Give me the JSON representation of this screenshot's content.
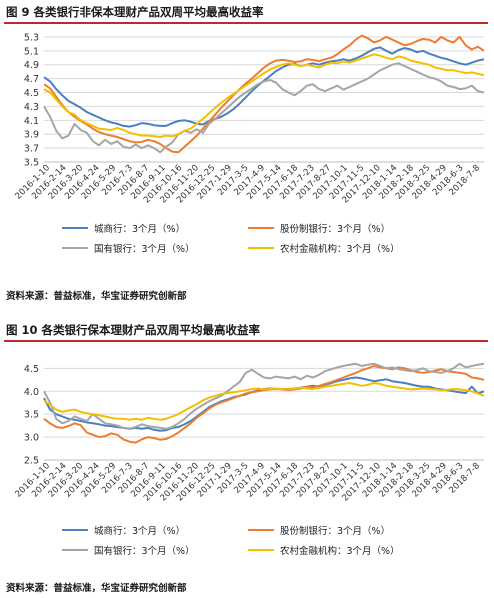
{
  "figures": [
    {
      "title": "图 9 各类银行非保本理财产品双周平均最高收益率",
      "source": "资料来源：普益标准，华宝证券研究创新部"
    },
    {
      "title": "图 10 各类银行保本理财产品双周平均最高收益率",
      "source": "资料来源：普益标准，华宝证券研究创新部"
    }
  ],
  "colors": {
    "城商行": "#4a7fc1",
    "股份制银行": "#ed7d31",
    "国有银行": "#a5a5a5",
    "农村金融机构": "#f2c000",
    "rule": "#c0282d"
  },
  "chart_data": [
    {
      "type": "line",
      "title": "图 9 各类银行非保本理财产品双周平均最高收益率",
      "x_ticks": [
        "2016-1-10",
        "2016-2-14",
        "2016-3-20",
        "2016-4-24",
        "2016-5-29",
        "2016-7-3",
        "2016-8-7",
        "2016-9-11",
        "2016-10-16",
        "2016-11-20",
        "2016-12-25",
        "2017-1-29",
        "2017-3-5",
        "2017-4-9",
        "2017-5-14",
        "2017-6-18",
        "2017-7-23",
        "2017-8-27",
        "2017-10-1",
        "2017-11-5",
        "2017-12-10",
        "2018-1-14",
        "2018-2-18",
        "2018-3-25",
        "2018-4-29",
        "2018-6-3",
        "2018-7-8"
      ],
      "y_ticks": [
        3.5,
        3.7,
        3.9,
        4.1,
        4.3,
        4.5,
        4.7,
        4.9,
        5.1,
        5.3
      ],
      "ylim": [
        3.5,
        5.4
      ],
      "grid": true,
      "legend_position": "bottom",
      "series": [
        {
          "name": "城商行：3个月（%）",
          "color_key": "城商行",
          "values": [
            4.72,
            4.66,
            4.55,
            4.46,
            4.38,
            4.33,
            4.28,
            4.22,
            4.18,
            4.14,
            4.1,
            4.07,
            4.05,
            4.02,
            4.01,
            4.03,
            4.06,
            4.05,
            4.03,
            4.02,
            4.02,
            4.06,
            4.09,
            4.1,
            4.08,
            4.05,
            4.04,
            4.09,
            4.12,
            4.15,
            4.2,
            4.26,
            4.34,
            4.43,
            4.52,
            4.6,
            4.67,
            4.74,
            4.81,
            4.86,
            4.9,
            4.91,
            4.88,
            4.9,
            4.92,
            4.9,
            4.93,
            4.95,
            4.96,
            4.98,
            4.96,
            4.99,
            5.03,
            5.08,
            5.13,
            5.15,
            5.1,
            5.06,
            5.11,
            5.14,
            5.12,
            5.08,
            5.1,
            5.06,
            5.03,
            5.0,
            4.98,
            4.95,
            4.92,
            4.9,
            4.93,
            4.96,
            4.98
          ]
        },
        {
          "name": "股份制银行：3个月（%）",
          "color_key": "股份制银行",
          "values": [
            4.62,
            4.56,
            4.44,
            4.32,
            4.22,
            4.15,
            4.09,
            4.04,
            3.98,
            3.93,
            3.9,
            3.88,
            3.86,
            3.83,
            3.8,
            3.78,
            3.79,
            3.82,
            3.8,
            3.76,
            3.7,
            3.65,
            3.64,
            3.72,
            3.8,
            3.88,
            3.98,
            4.08,
            4.18,
            4.28,
            4.37,
            4.46,
            4.55,
            4.63,
            4.7,
            4.78,
            4.86,
            4.92,
            4.96,
            4.97,
            4.96,
            4.94,
            4.95,
            4.98,
            4.97,
            4.95,
            4.98,
            5.0,
            5.05,
            5.12,
            5.18,
            5.26,
            5.32,
            5.28,
            5.22,
            5.25,
            5.3,
            5.26,
            5.22,
            5.18,
            5.2,
            5.24,
            5.27,
            5.26,
            5.22,
            5.3,
            5.25,
            5.22,
            5.3,
            5.18,
            5.12,
            5.16,
            5.1
          ]
        },
        {
          "name": "国有银行：3个月（%）",
          "color_key": "国有银行",
          "values": [
            4.3,
            4.15,
            3.95,
            3.84,
            3.88,
            4.05,
            3.96,
            3.92,
            3.8,
            3.74,
            3.82,
            3.76,
            3.8,
            3.72,
            3.7,
            3.75,
            3.7,
            3.74,
            3.7,
            3.64,
            3.72,
            3.78,
            3.9,
            3.95,
            3.92,
            3.97,
            3.92,
            4.05,
            4.12,
            4.2,
            4.28,
            4.36,
            4.44,
            4.5,
            4.56,
            4.62,
            4.66,
            4.68,
            4.64,
            4.55,
            4.5,
            4.46,
            4.52,
            4.6,
            4.62,
            4.55,
            4.52,
            4.56,
            4.6,
            4.54,
            4.58,
            4.62,
            4.66,
            4.7,
            4.76,
            4.82,
            4.86,
            4.9,
            4.92,
            4.88,
            4.84,
            4.8,
            4.76,
            4.72,
            4.7,
            4.66,
            4.6,
            4.58,
            4.55,
            4.56,
            4.6,
            4.52,
            4.5
          ]
        },
        {
          "name": "农村金融机构：3个月（%）",
          "color_key": "农村金融机构",
          "values": [
            4.55,
            4.5,
            4.4,
            4.3,
            4.22,
            4.18,
            4.1,
            4.06,
            4.02,
            3.98,
            3.97,
            3.96,
            3.99,
            3.96,
            3.92,
            3.9,
            3.88,
            3.88,
            3.87,
            3.86,
            3.88,
            3.87,
            3.9,
            3.95,
            3.98,
            4.05,
            4.12,
            4.2,
            4.28,
            4.35,
            4.42,
            4.48,
            4.54,
            4.6,
            4.66,
            4.72,
            4.78,
            4.83,
            4.87,
            4.9,
            4.92,
            4.9,
            4.88,
            4.9,
            4.88,
            4.86,
            4.9,
            4.93,
            4.92,
            4.95,
            4.93,
            4.96,
            4.99,
            5.02,
            5.05,
            5.03,
            5.0,
            4.98,
            5.02,
            5.0,
            4.96,
            4.94,
            4.92,
            4.9,
            4.86,
            4.84,
            4.82,
            4.82,
            4.8,
            4.78,
            4.79,
            4.77,
            4.75
          ]
        }
      ]
    },
    {
      "type": "line",
      "title": "图 10 各类银行保本理财产品双周平均最高收益率",
      "x_ticks": [
        "2016-1-10",
        "2016-2-14",
        "2016-3-20",
        "2016-4-24",
        "2016-5-29",
        "2016-7-3",
        "2016-8-7",
        "2016-9-11",
        "2016-10-16",
        "2016-11-20",
        "2016-12-25",
        "2017-1-29",
        "2017-3-5",
        "2017-4-9",
        "2017-5-14",
        "2017-6-18",
        "2017-7-23",
        "2017-8-27",
        "2017-10-1",
        "2017-11-5",
        "2017-12-10",
        "2018-1-14",
        "2018-2-18",
        "2018-3-25",
        "2018-4-29",
        "2018-6-3",
        "2018-7-8"
      ],
      "y_ticks": [
        2.5,
        3.0,
        3.5,
        4.0,
        4.5
      ],
      "ylim": [
        2.5,
        4.9
      ],
      "grid": true,
      "legend_position": "bottom",
      "series": [
        {
          "name": "城商行：3个月（%）",
          "color_key": "城商行",
          "values": [
            3.85,
            3.6,
            3.5,
            3.45,
            3.4,
            3.38,
            3.35,
            3.32,
            3.3,
            3.28,
            3.25,
            3.24,
            3.22,
            3.2,
            3.18,
            3.2,
            3.18,
            3.2,
            3.16,
            3.14,
            3.15,
            3.2,
            3.22,
            3.28,
            3.35,
            3.45,
            3.55,
            3.65,
            3.72,
            3.78,
            3.82,
            3.87,
            3.9,
            3.93,
            3.98,
            4.02,
            4.05,
            4.06,
            4.05,
            4.05,
            4.05,
            4.06,
            4.08,
            4.1,
            4.12,
            4.1,
            4.14,
            4.18,
            4.22,
            4.25,
            4.28,
            4.3,
            4.28,
            4.25,
            4.22,
            4.24,
            4.26,
            4.22,
            4.2,
            4.18,
            4.15,
            4.12,
            4.1,
            4.1,
            4.06,
            4.04,
            4.02,
            4.0,
            3.98,
            3.96,
            4.1,
            3.95,
            4.0
          ]
        },
        {
          "name": "股份制银行：3个月（%）",
          "color_key": "股份制银行",
          "values": [
            3.4,
            3.3,
            3.22,
            3.2,
            3.24,
            3.3,
            3.26,
            3.1,
            3.05,
            3.0,
            3.02,
            3.08,
            3.05,
            2.95,
            2.9,
            2.88,
            2.95,
            3.0,
            2.98,
            2.94,
            2.96,
            3.02,
            3.1,
            3.2,
            3.3,
            3.42,
            3.52,
            3.62,
            3.7,
            3.76,
            3.8,
            3.85,
            3.9,
            3.95,
            3.98,
            4.0,
            4.02,
            4.04,
            4.05,
            4.04,
            4.02,
            4.04,
            4.06,
            4.1,
            4.08,
            4.12,
            4.16,
            4.2,
            4.25,
            4.3,
            4.35,
            4.4,
            4.46,
            4.5,
            4.55,
            4.52,
            4.5,
            4.48,
            4.52,
            4.5,
            4.46,
            4.42,
            4.4,
            4.42,
            4.45,
            4.48,
            4.44,
            4.42,
            4.4,
            4.38,
            4.3,
            4.28,
            4.25
          ]
        },
        {
          "name": "国有银行：3个月（%）",
          "color_key": "国有银行",
          "values": [
            4.0,
            3.75,
            3.4,
            3.3,
            3.35,
            3.45,
            3.4,
            3.35,
            3.5,
            3.4,
            3.3,
            3.28,
            3.25,
            3.2,
            3.18,
            3.22,
            3.28,
            3.24,
            3.22,
            3.2,
            3.18,
            3.22,
            3.3,
            3.4,
            3.52,
            3.62,
            3.7,
            3.78,
            3.84,
            3.9,
            4.0,
            4.1,
            4.2,
            4.4,
            4.47,
            4.38,
            4.3,
            4.28,
            4.32,
            4.3,
            4.28,
            4.32,
            4.26,
            4.34,
            4.3,
            4.36,
            4.44,
            4.48,
            4.52,
            4.55,
            4.58,
            4.6,
            4.55,
            4.58,
            4.6,
            4.55,
            4.5,
            4.52,
            4.48,
            4.46,
            4.44,
            4.46,
            4.5,
            4.44,
            4.42,
            4.4,
            4.44,
            4.5,
            4.6,
            4.52,
            4.55,
            4.58,
            4.6
          ]
        },
        {
          "name": "农村金融机构：3个月（%）",
          "color_key": "农村金融机构",
          "values": [
            3.8,
            3.7,
            3.6,
            3.55,
            3.58,
            3.6,
            3.55,
            3.52,
            3.5,
            3.48,
            3.45,
            3.42,
            3.4,
            3.4,
            3.38,
            3.4,
            3.38,
            3.42,
            3.4,
            3.38,
            3.4,
            3.45,
            3.5,
            3.58,
            3.65,
            3.72,
            3.8,
            3.86,
            3.9,
            3.94,
            3.96,
            3.98,
            4.0,
            4.02,
            4.05,
            4.06,
            4.04,
            4.05,
            4.06,
            4.05,
            4.04,
            4.06,
            4.08,
            4.06,
            4.05,
            4.07,
            4.1,
            4.12,
            4.14,
            4.16,
            4.18,
            4.15,
            4.12,
            4.14,
            4.18,
            4.16,
            4.12,
            4.1,
            4.08,
            4.06,
            4.04,
            4.05,
            4.06,
            4.05,
            4.04,
            4.02,
            4.03,
            4.05,
            4.04,
            4.02,
            4.0,
            3.95,
            3.9
          ]
        }
      ]
    }
  ]
}
